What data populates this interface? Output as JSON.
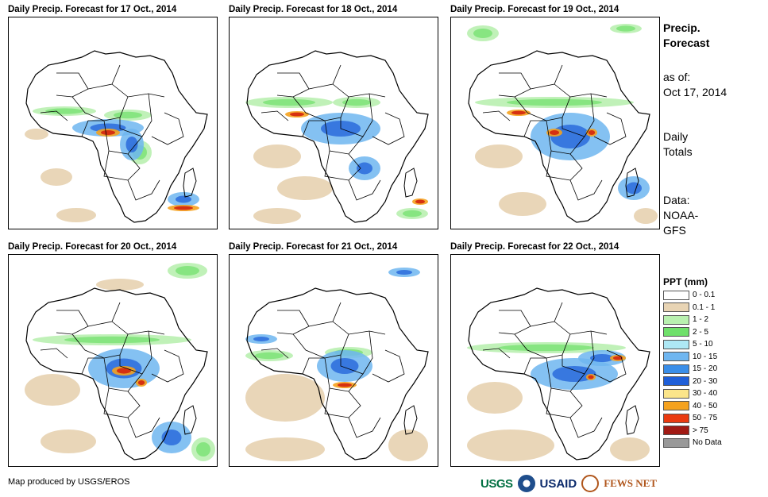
{
  "panels": [
    {
      "title": "Daily Precip. Forecast for 17 Oct., 2014",
      "date": "17 Oct."
    },
    {
      "title": "Daily Precip. Forecast for 18 Oct., 2014",
      "date": "18 Oct."
    },
    {
      "title": "Daily Precip. Forecast for 19 Oct., 2014",
      "date": "19 Oct."
    },
    {
      "title": "Daily Precip. Forecast for 20 Oct., 2014",
      "date": "20 Oct."
    },
    {
      "title": "Daily Precip. Forecast for 21 Oct., 2014",
      "date": "21 Oct."
    },
    {
      "title": "Daily Precip. Forecast for 22 Oct., 2014",
      "date": "22 Oct."
    }
  ],
  "side": {
    "title_line1": "Precip.",
    "title_line2": "Forecast",
    "asof_line1": "as of:",
    "asof_line2": "Oct 17, 2014",
    "totals_line1": "Daily",
    "totals_line2": "Totals",
    "data_line1": "Data:",
    "data_line2": "NOAA-",
    "data_line3": "GFS"
  },
  "legend": {
    "title": "PPT (mm)",
    "items": [
      {
        "label": "0 - 0.1",
        "color": "#ffffff"
      },
      {
        "label": "0.1 - 1",
        "color": "#e8d4b4"
      },
      {
        "label": "1 - 2",
        "color": "#b9f0b0"
      },
      {
        "label": "2 - 5",
        "color": "#6fe06a"
      },
      {
        "label": "5 - 10",
        "color": "#aee8f5"
      },
      {
        "label": "10 - 15",
        "color": "#6fb6f0"
      },
      {
        "label": "15 - 20",
        "color": "#3a8ee8"
      },
      {
        "label": "20 - 30",
        "color": "#1f5fd8"
      },
      {
        "label": "30 - 40",
        "color": "#fbe58a"
      },
      {
        "label": "40 - 50",
        "color": "#f5a21e"
      },
      {
        "label": "50 - 75",
        "color": "#ea3a10"
      },
      {
        "label": "> 75",
        "color": "#a11a14"
      },
      {
        "label": "No Data",
        "color": "#999999"
      }
    ]
  },
  "footer": {
    "credit": "Map produced by USGS/EROS",
    "logo_usgs": "USGS",
    "logo_usaid": "USAID",
    "logo_fews": "FEWS NET"
  },
  "colors": {
    "sand": "#e8d4b4",
    "light_green": "#b9f0b0",
    "green": "#6fe06a",
    "light_blue": "#6fb6f0",
    "blue": "#1f5fd8",
    "orange": "#f5a21e",
    "red": "#d42a10"
  }
}
